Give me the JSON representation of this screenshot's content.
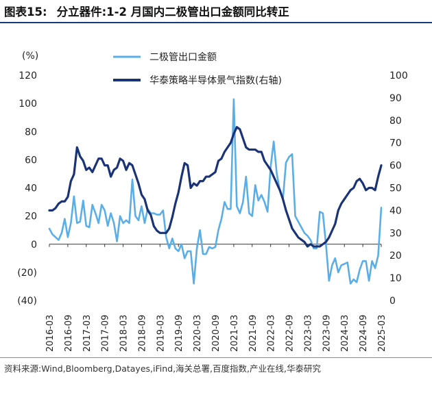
{
  "header": {
    "figure_label": "图表15:",
    "title": "分立器件:1-2 月国内二极管出口金额同比转正"
  },
  "source_text": "资料来源:Wind,Bloomberg,Datayes,iFind,海关总署,百度指数,产业在线,华泰研究",
  "chart_data": {
    "type": "line",
    "left_axis": {
      "unit_label": "(%)",
      "ylim": [
        -40,
        120
      ],
      "tick_labels": [
        "(40)",
        "(20)",
        "0",
        "20",
        "40",
        "60",
        "80",
        "100",
        "120"
      ],
      "tick_values": [
        -40,
        -20,
        0,
        20,
        40,
        60,
        80,
        100,
        120
      ]
    },
    "right_axis": {
      "ylim": [
        0,
        100
      ],
      "tick_labels": [
        "0",
        "10",
        "20",
        "30",
        "40",
        "50",
        "60",
        "70",
        "80",
        "90",
        "100"
      ],
      "tick_values": [
        0,
        10,
        20,
        30,
        40,
        50,
        60,
        70,
        80,
        90,
        100
      ]
    },
    "x_tick_labels": [
      "2016-03",
      "2016-09",
      "2017-03",
      "2017-09",
      "2018-03",
      "2018-09",
      "2019-03",
      "2019-09",
      "2020-03",
      "2020-09",
      "2021-03",
      "2021-09",
      "2022-03",
      "2022-09",
      "2023-03",
      "2023-09",
      "2024-03",
      "2024-09",
      "2025-03"
    ],
    "x_range": [
      "2016-03",
      "2025-03"
    ],
    "grid": false,
    "legend_position": "top-center",
    "series": [
      {
        "name": "二极管出口金额",
        "axis": "left",
        "color": "#5aaee8",
        "values": [
          [
            "2016-03",
            11
          ],
          [
            "2016-04",
            7
          ],
          [
            "2016-05",
            5
          ],
          [
            "2016-06",
            3
          ],
          [
            "2016-07",
            8
          ],
          [
            "2016-08",
            18
          ],
          [
            "2016-09",
            5
          ],
          [
            "2016-10",
            15
          ],
          [
            "2016-11",
            34
          ],
          [
            "2016-12",
            15
          ],
          [
            "2017-01",
            16
          ],
          [
            "2017-02",
            31
          ],
          [
            "2017-03",
            13
          ],
          [
            "2017-04",
            12
          ],
          [
            "2017-05",
            28
          ],
          [
            "2017-06",
            22
          ],
          [
            "2017-07",
            15
          ],
          [
            "2017-08",
            28
          ],
          [
            "2017-09",
            24
          ],
          [
            "2017-10",
            13
          ],
          [
            "2017-11",
            22
          ],
          [
            "2017-12",
            15
          ],
          [
            "2018-01",
            2
          ],
          [
            "2018-02",
            20
          ],
          [
            "2018-03",
            15
          ],
          [
            "2018-04",
            17
          ],
          [
            "2018-05",
            15
          ],
          [
            "2018-06",
            46
          ],
          [
            "2018-07",
            20
          ],
          [
            "2018-08",
            17
          ],
          [
            "2018-09",
            27
          ],
          [
            "2018-10",
            15
          ],
          [
            "2018-11",
            25
          ],
          [
            "2018-12",
            22
          ],
          [
            "2019-01",
            22
          ],
          [
            "2019-02",
            21
          ],
          [
            "2019-03",
            21
          ],
          [
            "2019-04",
            24
          ],
          [
            "2019-05",
            5
          ],
          [
            "2019-06",
            -3
          ],
          [
            "2019-07",
            4
          ],
          [
            "2019-08",
            -3
          ],
          [
            "2019-09",
            -5
          ],
          [
            "2019-10",
            0
          ],
          [
            "2019-11",
            -10
          ],
          [
            "2019-12",
            -5
          ],
          [
            "2020-01",
            -5
          ],
          [
            "2020-02",
            -28
          ],
          [
            "2020-03",
            -3
          ],
          [
            "2020-04",
            10
          ],
          [
            "2020-05",
            -7
          ],
          [
            "2020-06",
            -7
          ],
          [
            "2020-07",
            -2
          ],
          [
            "2020-08",
            -3
          ],
          [
            "2020-09",
            -2
          ],
          [
            "2020-10",
            10
          ],
          [
            "2020-11",
            18
          ],
          [
            "2020-12",
            30
          ],
          [
            "2021-01",
            25
          ],
          [
            "2021-02",
            25
          ],
          [
            "2021-03",
            103
          ],
          [
            "2021-04",
            27
          ],
          [
            "2021-05",
            22
          ],
          [
            "2021-06",
            30
          ],
          [
            "2021-07",
            48
          ],
          [
            "2021-08",
            22
          ],
          [
            "2021-09",
            20
          ],
          [
            "2021-10",
            42
          ],
          [
            "2021-11",
            31
          ],
          [
            "2021-12",
            35
          ],
          [
            "2022-01",
            30
          ],
          [
            "2022-02",
            23
          ],
          [
            "2022-03",
            55
          ],
          [
            "2022-04",
            73
          ],
          [
            "2022-05",
            50
          ],
          [
            "2022-06",
            38
          ],
          [
            "2022-07",
            32
          ],
          [
            "2022-08",
            58
          ],
          [
            "2022-09",
            62
          ],
          [
            "2022-10",
            64
          ],
          [
            "2022-11",
            20
          ],
          [
            "2022-12",
            16
          ],
          [
            "2023-01",
            12
          ],
          [
            "2023-02",
            8
          ],
          [
            "2023-03",
            6
          ],
          [
            "2023-04",
            3
          ],
          [
            "2023-05",
            -3
          ],
          [
            "2023-06",
            -3
          ],
          [
            "2023-07",
            23
          ],
          [
            "2023-08",
            22
          ],
          [
            "2023-09",
            0
          ],
          [
            "2023-10",
            -26
          ],
          [
            "2023-11",
            -15
          ],
          [
            "2023-12",
            -10
          ],
          [
            "2024-01",
            -20
          ],
          [
            "2024-02",
            -15
          ],
          [
            "2024-03",
            -14
          ],
          [
            "2024-04",
            -13
          ],
          [
            "2024-05",
            -28
          ],
          [
            "2024-06",
            -25
          ],
          [
            "2024-07",
            -27
          ],
          [
            "2024-08",
            -18
          ],
          [
            "2024-09",
            -12
          ],
          [
            "2024-10",
            -12
          ],
          [
            "2024-11",
            -26
          ],
          [
            "2024-12",
            -12
          ],
          [
            "2025-01",
            -17
          ],
          [
            "2025-02",
            -8
          ],
          [
            "2025-03",
            26
          ]
        ]
      },
      {
        "name": "华泰策略半导体景气指数(右轴)",
        "axis": "right",
        "color": "#1a3276",
        "values": [
          [
            "2016-03",
            40
          ],
          [
            "2016-04",
            40
          ],
          [
            "2016-05",
            41
          ],
          [
            "2016-06",
            43
          ],
          [
            "2016-07",
            44
          ],
          [
            "2016-08",
            44
          ],
          [
            "2016-09",
            46
          ],
          [
            "2016-10",
            53
          ],
          [
            "2016-11",
            56
          ],
          [
            "2016-12",
            68
          ],
          [
            "2017-01",
            64
          ],
          [
            "2017-02",
            62
          ],
          [
            "2017-03",
            58
          ],
          [
            "2017-04",
            59
          ],
          [
            "2017-05",
            57
          ],
          [
            "2017-06",
            60
          ],
          [
            "2017-07",
            63
          ],
          [
            "2017-08",
            63
          ],
          [
            "2017-09",
            60
          ],
          [
            "2017-10",
            60
          ],
          [
            "2017-11",
            55
          ],
          [
            "2017-12",
            58
          ],
          [
            "2018-01",
            59
          ],
          [
            "2018-02",
            63
          ],
          [
            "2018-03",
            62
          ],
          [
            "2018-04",
            58
          ],
          [
            "2018-05",
            61
          ],
          [
            "2018-06",
            60
          ],
          [
            "2018-07",
            56
          ],
          [
            "2018-08",
            52
          ],
          [
            "2018-09",
            47
          ],
          [
            "2018-10",
            45
          ],
          [
            "2018-11",
            40
          ],
          [
            "2018-12",
            38
          ],
          [
            "2019-01",
            33
          ],
          [
            "2019-02",
            31
          ],
          [
            "2019-03",
            30
          ],
          [
            "2019-04",
            30
          ],
          [
            "2019-05",
            30
          ],
          [
            "2019-06",
            32
          ],
          [
            "2019-07",
            37
          ],
          [
            "2019-08",
            43
          ],
          [
            "2019-09",
            48
          ],
          [
            "2019-10",
            55
          ],
          [
            "2019-11",
            61
          ],
          [
            "2019-12",
            60
          ],
          [
            "2020-01",
            50
          ],
          [
            "2020-02",
            52
          ],
          [
            "2020-03",
            51
          ],
          [
            "2020-04",
            53
          ],
          [
            "2020-05",
            53
          ],
          [
            "2020-06",
            55
          ],
          [
            "2020-07",
            55
          ],
          [
            "2020-08",
            56
          ],
          [
            "2020-09",
            57
          ],
          [
            "2020-10",
            62
          ],
          [
            "2020-11",
            63
          ],
          [
            "2020-12",
            66
          ],
          [
            "2021-01",
            68
          ],
          [
            "2021-02",
            70
          ],
          [
            "2021-03",
            74
          ],
          [
            "2021-04",
            77
          ],
          [
            "2021-05",
            76
          ],
          [
            "2021-06",
            72
          ],
          [
            "2021-07",
            68
          ],
          [
            "2021-08",
            67
          ],
          [
            "2021-09",
            67
          ],
          [
            "2021-10",
            67
          ],
          [
            "2021-11",
            66
          ],
          [
            "2021-12",
            66
          ],
          [
            "2022-01",
            62
          ],
          [
            "2022-02",
            60
          ],
          [
            "2022-03",
            58
          ],
          [
            "2022-04",
            55
          ],
          [
            "2022-05",
            52
          ],
          [
            "2022-06",
            49
          ],
          [
            "2022-07",
            45
          ],
          [
            "2022-08",
            40
          ],
          [
            "2022-09",
            36
          ],
          [
            "2022-10",
            32
          ],
          [
            "2022-11",
            30
          ],
          [
            "2022-12",
            28
          ],
          [
            "2023-01",
            27
          ],
          [
            "2023-02",
            26
          ],
          [
            "2023-03",
            24
          ],
          [
            "2023-04",
            25
          ],
          [
            "2023-05",
            24
          ],
          [
            "2023-06",
            24
          ],
          [
            "2023-07",
            24
          ],
          [
            "2023-08",
            25
          ],
          [
            "2023-09",
            26
          ],
          [
            "2023-10",
            28
          ],
          [
            "2023-11",
            31
          ],
          [
            "2023-12",
            34
          ],
          [
            "2024-01",
            40
          ],
          [
            "2024-02",
            43
          ],
          [
            "2024-03",
            45
          ],
          [
            "2024-04",
            47
          ],
          [
            "2024-05",
            49
          ],
          [
            "2024-06",
            50
          ],
          [
            "2024-07",
            53
          ],
          [
            "2024-08",
            54
          ],
          [
            "2024-09",
            52
          ],
          [
            "2024-10",
            49
          ],
          [
            "2024-11",
            50
          ],
          [
            "2024-12",
            50
          ],
          [
            "2025-01",
            49
          ],
          [
            "2025-02",
            55
          ],
          [
            "2025-03",
            60
          ]
        ]
      }
    ]
  }
}
